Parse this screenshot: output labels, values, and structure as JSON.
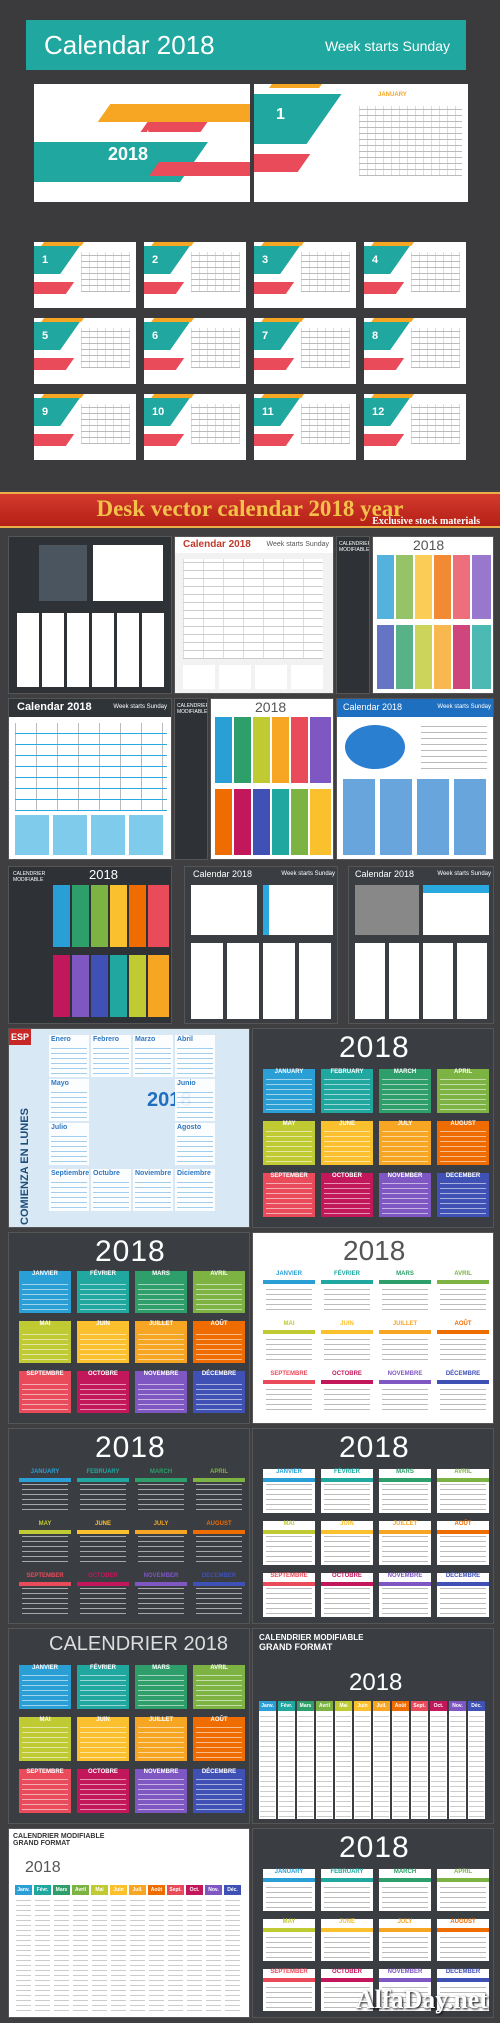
{
  "hero": {
    "title": "Calendar 2018",
    "subtitle": "Week starts Sunday",
    "cover_title": "Calendar",
    "cover_year": "2018",
    "month_number": "1",
    "month_name": "JANUARY",
    "month_numbers": [
      "1",
      "2",
      "3",
      "4",
      "5",
      "6",
      "7",
      "8",
      "9",
      "10",
      "11",
      "12"
    ]
  },
  "banner": {
    "title": "Desk vector calendar 2018 year",
    "subtitle": "Exclusive stock materials"
  },
  "thumbs": {
    "calendar_2018": "Calendar 2018",
    "week_starts_sunday": "Week starts Sunday",
    "calendrier_modifiable": "CALENDRIER MODIFIABLE",
    "year": "2018",
    "calendrier_2018": "CALENDRIER 2018",
    "grand_format": "GRAND FORMAT",
    "esp_tag": "ESP",
    "comienza": "COMIENZA EN LUNES"
  },
  "spanish_months": [
    "Enero",
    "Febrero",
    "Marzo",
    "Abril",
    "Mayo",
    "Junio",
    "Julio",
    "Agosto",
    "Septiembre",
    "Octubre",
    "Noviembre",
    "Diciembre"
  ],
  "english_months": [
    "JANUARY",
    "FEBRUARY",
    "MARCH",
    "APRIL",
    "MAY",
    "JUNE",
    "JULY",
    "AUGUST",
    "SEPTEMBER",
    "OCTOBER",
    "NOVEMBER",
    "DECEMBER"
  ],
  "french_months": [
    "JANVIER",
    "FÉVRIER",
    "MARS",
    "AVRIL",
    "MAI",
    "JUIN",
    "JUILLET",
    "AOÛT",
    "SEPTEMBRE",
    "OCTOBRE",
    "NOVEMBRE",
    "DÉCEMBRE"
  ],
  "french_short": [
    "Janv.",
    "Févr.",
    "Mars",
    "Avril",
    "Mai",
    "Juin",
    "Juil.",
    "Août",
    "Sept.",
    "Oct.",
    "Nov.",
    "Déc."
  ],
  "colors": {
    "teal": "#1fa7a0",
    "orange": "#f6a623",
    "red": "#e94b5b",
    "blue": "#2a7fd0",
    "green": "#7cb342",
    "purple": "#7e57c2",
    "yellow": "#fbc02d",
    "banner_red": "#c52b1f",
    "banner_gold": "#f4c24a"
  },
  "month_colors": [
    "#2a9fd6",
    "#1fa7a0",
    "#2e9e6a",
    "#7cb342",
    "#c0ca33",
    "#fbc02d",
    "#f6a623",
    "#ef6c00",
    "#e94b5b",
    "#c2185b",
    "#7e57c2",
    "#3f51b5"
  ],
  "watermark": "AlfaDay.net"
}
